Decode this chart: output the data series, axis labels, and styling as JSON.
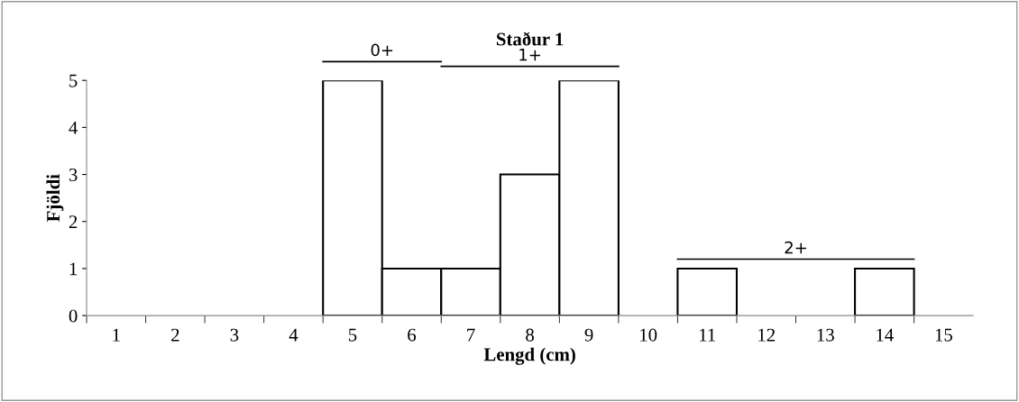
{
  "chart_data": {
    "type": "bar",
    "title": "Staður 1",
    "xlabel": "Lengd (cm)",
    "ylabel": "Fjöldi",
    "categories": [
      "1",
      "2",
      "3",
      "4",
      "5",
      "6",
      "7",
      "8",
      "9",
      "10",
      "11",
      "12",
      "13",
      "14",
      "15"
    ],
    "values": [
      0,
      0,
      0,
      0,
      5,
      1,
      1,
      3,
      5,
      0,
      1,
      0,
      0,
      1,
      0
    ],
    "color": "#ffffff",
    "ylim": [
      0,
      5
    ],
    "yticks": [
      0,
      1,
      2,
      3,
      4,
      5
    ],
    "grid": false,
    "annotations": [
      "0+",
      "1+",
      "2+"
    ]
  }
}
